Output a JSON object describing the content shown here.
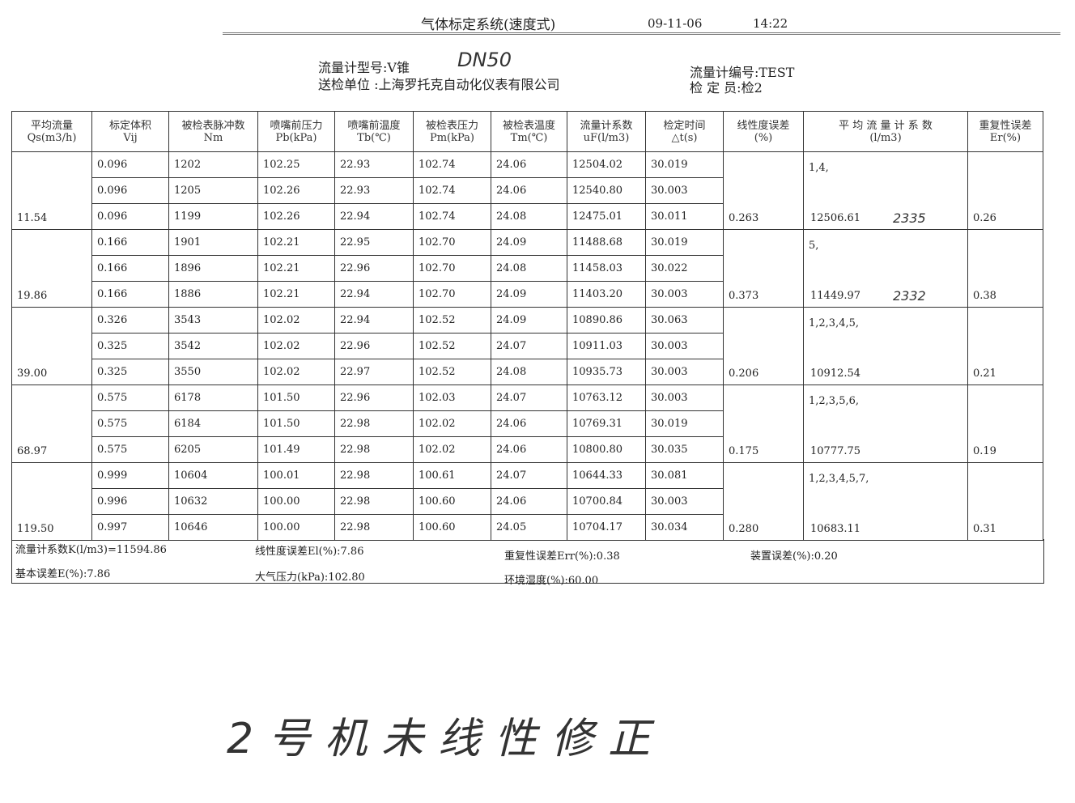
{
  "header": {
    "title": "气体标定系统(速度式)",
    "date": "09-11-06",
    "time": "14:22",
    "meter_model": "流量计型号:V锥",
    "handwritten_model": "DN50",
    "unit": "送检单位    :上海罗托克自动化仪表有限公司",
    "meter_no": "流量计编号:TEST",
    "inspector": "检    定    员:检2"
  },
  "columns": [
    "平均流量\nQs(m3/h)",
    "标定体积\nVij",
    "被检表脉冲数\nNm",
    "喷嘴前压力\nPb(kPa)",
    "喷嘴前温度\nTb(℃)",
    "被检表压力\nPm(kPa)",
    "被检表温度\nTm(℃)",
    "流量计系数\nuF(l/m3)",
    "检定时间\n△t(s)",
    "线性度误差\n(%)",
    "平 均 流 量 计 系 数\n(l/m3)",
    "重复性误差\nEr(%)"
  ],
  "groups": [
    {
      "qs": "11.54",
      "linearity": "0.263",
      "points": "1,4,",
      "avg": "12506.61",
      "note": "2335",
      "repeat": "0.26",
      "rows": [
        [
          "0.096",
          "1202",
          "102.25",
          "22.93",
          "102.74",
          "24.06",
          "12504.02",
          "30.019"
        ],
        [
          "0.096",
          "1205",
          "102.26",
          "22.93",
          "102.74",
          "24.06",
          "12540.80",
          "30.003"
        ],
        [
          "0.096",
          "1199",
          "102.26",
          "22.94",
          "102.74",
          "24.08",
          "12475.01",
          "30.011"
        ]
      ]
    },
    {
      "qs": "19.86",
      "linearity": "0.373",
      "points": "5,",
      "avg": "11449.97",
      "note": "2332",
      "repeat": "0.38",
      "rows": [
        [
          "0.166",
          "1901",
          "102.21",
          "22.95",
          "102.70",
          "24.09",
          "11488.68",
          "30.019"
        ],
        [
          "0.166",
          "1896",
          "102.21",
          "22.96",
          "102.70",
          "24.08",
          "11458.03",
          "30.022"
        ],
        [
          "0.166",
          "1886",
          "102.21",
          "22.94",
          "102.70",
          "24.09",
          "11403.20",
          "30.003"
        ]
      ]
    },
    {
      "qs": "39.00",
      "linearity": "0.206",
      "points": "1,2,3,4,5,",
      "avg": "10912.54",
      "note": "",
      "repeat": "0.21",
      "rows": [
        [
          "0.326",
          "3543",
          "102.02",
          "22.94",
          "102.52",
          "24.09",
          "10890.86",
          "30.063"
        ],
        [
          "0.325",
          "3542",
          "102.02",
          "22.96",
          "102.52",
          "24.07",
          "10911.03",
          "30.003"
        ],
        [
          "0.325",
          "3550",
          "102.02",
          "22.97",
          "102.52",
          "24.08",
          "10935.73",
          "30.003"
        ]
      ]
    },
    {
      "qs": "68.97",
      "linearity": "0.175",
      "points": "1,2,3,5,6,",
      "avg": "10777.75",
      "note": "",
      "repeat": "0.19",
      "rows": [
        [
          "0.575",
          "6178",
          "101.50",
          "22.96",
          "102.03",
          "24.07",
          "10763.12",
          "30.003"
        ],
        [
          "0.575",
          "6184",
          "101.50",
          "22.98",
          "102.02",
          "24.06",
          "10769.31",
          "30.019"
        ],
        [
          "0.575",
          "6205",
          "101.49",
          "22.98",
          "102.02",
          "24.06",
          "10800.80",
          "30.035"
        ]
      ]
    },
    {
      "qs": "119.50",
      "linearity": "0.280",
      "points": "1,2,3,4,5,7,",
      "avg": "10683.11",
      "note": "",
      "repeat": "0.31",
      "rows": [
        [
          "0.999",
          "10604",
          "100.01",
          "22.98",
          "100.61",
          "24.07",
          "10644.33",
          "30.081"
        ],
        [
          "0.996",
          "10632",
          "100.00",
          "22.98",
          "100.60",
          "24.06",
          "10700.84",
          "30.003"
        ],
        [
          "0.997",
          "10646",
          "100.00",
          "22.98",
          "100.60",
          "24.05",
          "10704.17",
          "30.034"
        ]
      ]
    }
  ],
  "footer": {
    "k": "流量计系数K(l/m3)=11594.86",
    "el": "线性度误差El(%):7.86",
    "err": "重复性误差Err(%):0.38",
    "device": "装置误差(%):0.20",
    "basic": "基本误差E(%):7.86",
    "atm": "大气压力(kPa):102.80",
    "humidity": "环境湿度(%):60.00"
  },
  "handwritten_note": "2号机未线性修正"
}
